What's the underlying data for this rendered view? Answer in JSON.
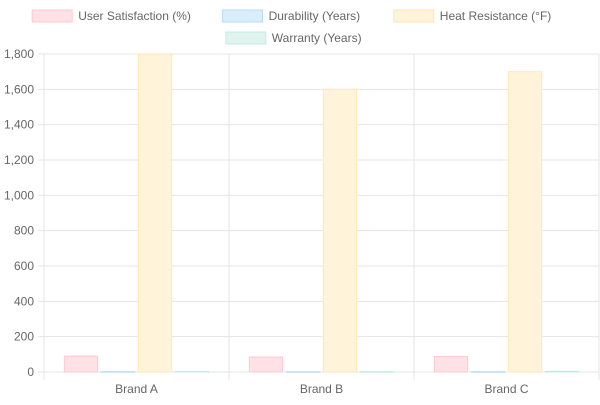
{
  "chart_data": {
    "type": "bar",
    "categories": [
      "Brand A",
      "Brand B",
      "Brand C"
    ],
    "series": [
      {
        "name": "User Satisfaction (%)",
        "values": [
          90,
          85,
          88
        ],
        "fill": "#ffe1e6",
        "stroke": "#ffc9d3"
      },
      {
        "name": "Durability (Years)",
        "values": [
          2,
          1.5,
          1.8
        ],
        "fill": "#d9eefb",
        "stroke": "#b7dcf4"
      },
      {
        "name": "Heat Resistance (°F)",
        "values": [
          1800,
          1600,
          1700
        ],
        "fill": "#fff3da",
        "stroke": "#ffe6b5"
      },
      {
        "name": "Warranty (Years)",
        "values": [
          3,
          2,
          4
        ],
        "fill": "#dff4ef",
        "stroke": "#c4ebe2"
      }
    ],
    "title": "",
    "xlabel": "",
    "ylabel": "",
    "ylim": [
      0,
      1800
    ],
    "yticks": [
      0,
      200,
      400,
      600,
      800,
      1000,
      1200,
      1400,
      1600,
      1800
    ],
    "ytick_labels": [
      "0",
      "200",
      "400",
      "600",
      "800",
      "1,000",
      "1,200",
      "1,400",
      "1,600",
      "1,800"
    ],
    "grid": true,
    "legend_position": "top"
  }
}
